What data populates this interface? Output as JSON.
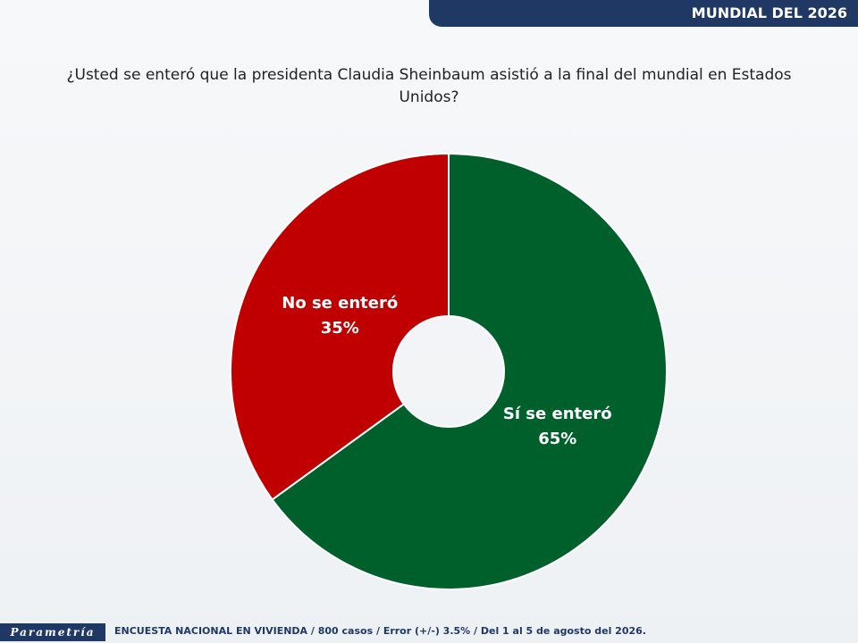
{
  "header": {
    "tag": "MUNDIAL DEL 2026"
  },
  "chart_data": {
    "type": "donut",
    "title": "¿Usted se enteró que la presidenta Claudia Sheinbaum asistió a la final del mundial en Estados Unidos?",
    "categories": [
      "Sí se enteró",
      "No se enteró"
    ],
    "values": [
      65,
      35
    ],
    "value_labels": [
      "65%",
      "35%"
    ],
    "colors": [
      "#00602b",
      "#c00000"
    ]
  },
  "footer": {
    "brand": "Parametría",
    "note": "ENCUESTA NACIONAL EN VIVIENDA / 800 casos / Error (+/-) 3.5% / Del 1 al 5 de agosto del 2026."
  }
}
